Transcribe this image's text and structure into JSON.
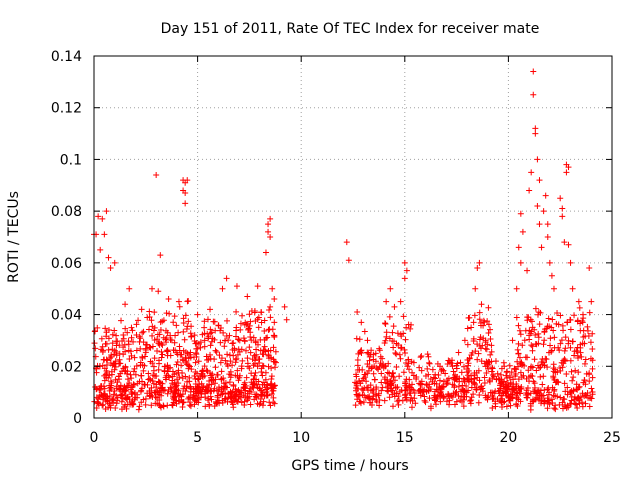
{
  "chart_data": {
    "type": "scatter",
    "title": "Day 151 of 2011, Rate Of TEC Index for receiver mate",
    "xlabel": "GPS time / hours",
    "ylabel": "ROTI / TECUs",
    "xlim": [
      0,
      25
    ],
    "ylim": [
      0,
      0.14
    ],
    "xticks": [
      0,
      5,
      10,
      15,
      20,
      25
    ],
    "yticks": [
      0,
      0.02,
      0.04,
      0.06,
      0.08,
      0.1,
      0.12,
      0.14
    ],
    "xtick_labels": [
      "0",
      "5",
      "10",
      "15",
      "20",
      "25"
    ],
    "ytick_labels": [
      "0",
      "0.02",
      "0.04",
      "0.06",
      "0.08",
      "0.1",
      "0.12",
      "0.14"
    ],
    "grid": true,
    "marker": "+",
    "marker_color": "#ff0000",
    "series": [
      {
        "points": [
          [
            0.0,
            0.071
          ],
          [
            0.1,
            0.071
          ],
          [
            0.2,
            0.078
          ],
          [
            0.4,
            0.077
          ],
          [
            0.5,
            0.071
          ],
          [
            0.6,
            0.08
          ],
          [
            0.3,
            0.065
          ],
          [
            0.7,
            0.062
          ],
          [
            0.8,
            0.058
          ],
          [
            1.0,
            0.06
          ],
          [
            1.5,
            0.044
          ],
          [
            1.7,
            0.05
          ],
          [
            2.3,
            0.042
          ],
          [
            3.0,
            0.094
          ],
          [
            3.2,
            0.063
          ],
          [
            2.8,
            0.05
          ],
          [
            3.1,
            0.049
          ],
          [
            3.6,
            0.046
          ],
          [
            4.1,
            0.045
          ],
          [
            4.3,
            0.092
          ],
          [
            4.4,
            0.091
          ],
          [
            4.5,
            0.092
          ],
          [
            4.3,
            0.088
          ],
          [
            4.4,
            0.087
          ],
          [
            4.4,
            0.083
          ],
          [
            5.0,
            0.04
          ],
          [
            5.6,
            0.042
          ],
          [
            6.2,
            0.05
          ],
          [
            6.4,
            0.054
          ],
          [
            6.9,
            0.051
          ],
          [
            7.4,
            0.047
          ],
          [
            7.9,
            0.051
          ],
          [
            8.3,
            0.064
          ],
          [
            8.4,
            0.072
          ],
          [
            8.5,
            0.077
          ],
          [
            8.4,
            0.075
          ],
          [
            8.5,
            0.07
          ],
          [
            8.6,
            0.05
          ],
          [
            8.7,
            0.046
          ],
          [
            8.5,
            0.043
          ],
          [
            9.2,
            0.043
          ],
          [
            9.3,
            0.038
          ],
          [
            12.2,
            0.068
          ],
          [
            12.3,
            0.061
          ],
          [
            12.7,
            0.041
          ],
          [
            12.9,
            0.037
          ],
          [
            13.2,
            0.03
          ],
          [
            13.6,
            0.025
          ],
          [
            14.1,
            0.045
          ],
          [
            14.3,
            0.05
          ],
          [
            14.5,
            0.043
          ],
          [
            14.8,
            0.045
          ],
          [
            15.0,
            0.06
          ],
          [
            15.1,
            0.057
          ],
          [
            15.0,
            0.054
          ],
          [
            15.3,
            0.036
          ],
          [
            15.8,
            0.024
          ],
          [
            16.2,
            0.021
          ],
          [
            16.7,
            0.02
          ],
          [
            17.3,
            0.02
          ],
          [
            17.9,
            0.03
          ],
          [
            18.2,
            0.035
          ],
          [
            18.4,
            0.05
          ],
          [
            18.5,
            0.058
          ],
          [
            18.6,
            0.06
          ],
          [
            18.7,
            0.044
          ],
          [
            18.9,
            0.03
          ],
          [
            19.4,
            0.022
          ],
          [
            19.8,
            0.02
          ],
          [
            20.2,
            0.03
          ],
          [
            20.4,
            0.05
          ],
          [
            20.5,
            0.066
          ],
          [
            20.6,
            0.079
          ],
          [
            20.7,
            0.072
          ],
          [
            20.6,
            0.06
          ],
          [
            20.9,
            0.057
          ],
          [
            21.0,
            0.088
          ],
          [
            21.1,
            0.095
          ],
          [
            21.2,
            0.125
          ],
          [
            21.2,
            0.134
          ],
          [
            21.3,
            0.112
          ],
          [
            21.3,
            0.11
          ],
          [
            21.4,
            0.1
          ],
          [
            21.5,
            0.092
          ],
          [
            21.4,
            0.082
          ],
          [
            21.5,
            0.075
          ],
          [
            21.6,
            0.066
          ],
          [
            21.7,
            0.08
          ],
          [
            21.8,
            0.086
          ],
          [
            21.9,
            0.075
          ],
          [
            21.9,
            0.07
          ],
          [
            22.0,
            0.06
          ],
          [
            22.1,
            0.055
          ],
          [
            22.2,
            0.05
          ],
          [
            22.5,
            0.085
          ],
          [
            22.6,
            0.081
          ],
          [
            22.6,
            0.078
          ],
          [
            22.7,
            0.068
          ],
          [
            22.8,
            0.098
          ],
          [
            22.8,
            0.095
          ],
          [
            22.9,
            0.097
          ],
          [
            22.9,
            0.067
          ],
          [
            23.0,
            0.06
          ],
          [
            23.1,
            0.05
          ],
          [
            23.4,
            0.045
          ],
          [
            23.6,
            0.04
          ],
          [
            23.9,
            0.058
          ],
          [
            24.0,
            0.045
          ]
        ]
      }
    ],
    "clusters": [
      {
        "x0": 0.0,
        "x1": 2.4,
        "base": 0.006,
        "peak": 0.03,
        "n": 260
      },
      {
        "x0": 2.4,
        "x1": 4.6,
        "base": 0.007,
        "peak": 0.035,
        "n": 240
      },
      {
        "x0": 4.6,
        "x1": 6.8,
        "base": 0.007,
        "peak": 0.03,
        "n": 240
      },
      {
        "x0": 6.8,
        "x1": 8.8,
        "base": 0.008,
        "peak": 0.032,
        "n": 230
      },
      {
        "x0": 12.6,
        "x1": 14.0,
        "base": 0.008,
        "peak": 0.022,
        "n": 110
      },
      {
        "x0": 14.0,
        "x1": 15.3,
        "base": 0.008,
        "peak": 0.03,
        "n": 110
      },
      {
        "x0": 15.3,
        "x1": 18.0,
        "base": 0.007,
        "peak": 0.015,
        "n": 170
      },
      {
        "x0": 18.0,
        "x1": 19.2,
        "base": 0.01,
        "peak": 0.03,
        "n": 110
      },
      {
        "x0": 19.2,
        "x1": 20.4,
        "base": 0.007,
        "peak": 0.012,
        "n": 110
      },
      {
        "x0": 20.4,
        "x1": 24.1,
        "base": 0.006,
        "peak": 0.035,
        "n": 330
      }
    ]
  }
}
